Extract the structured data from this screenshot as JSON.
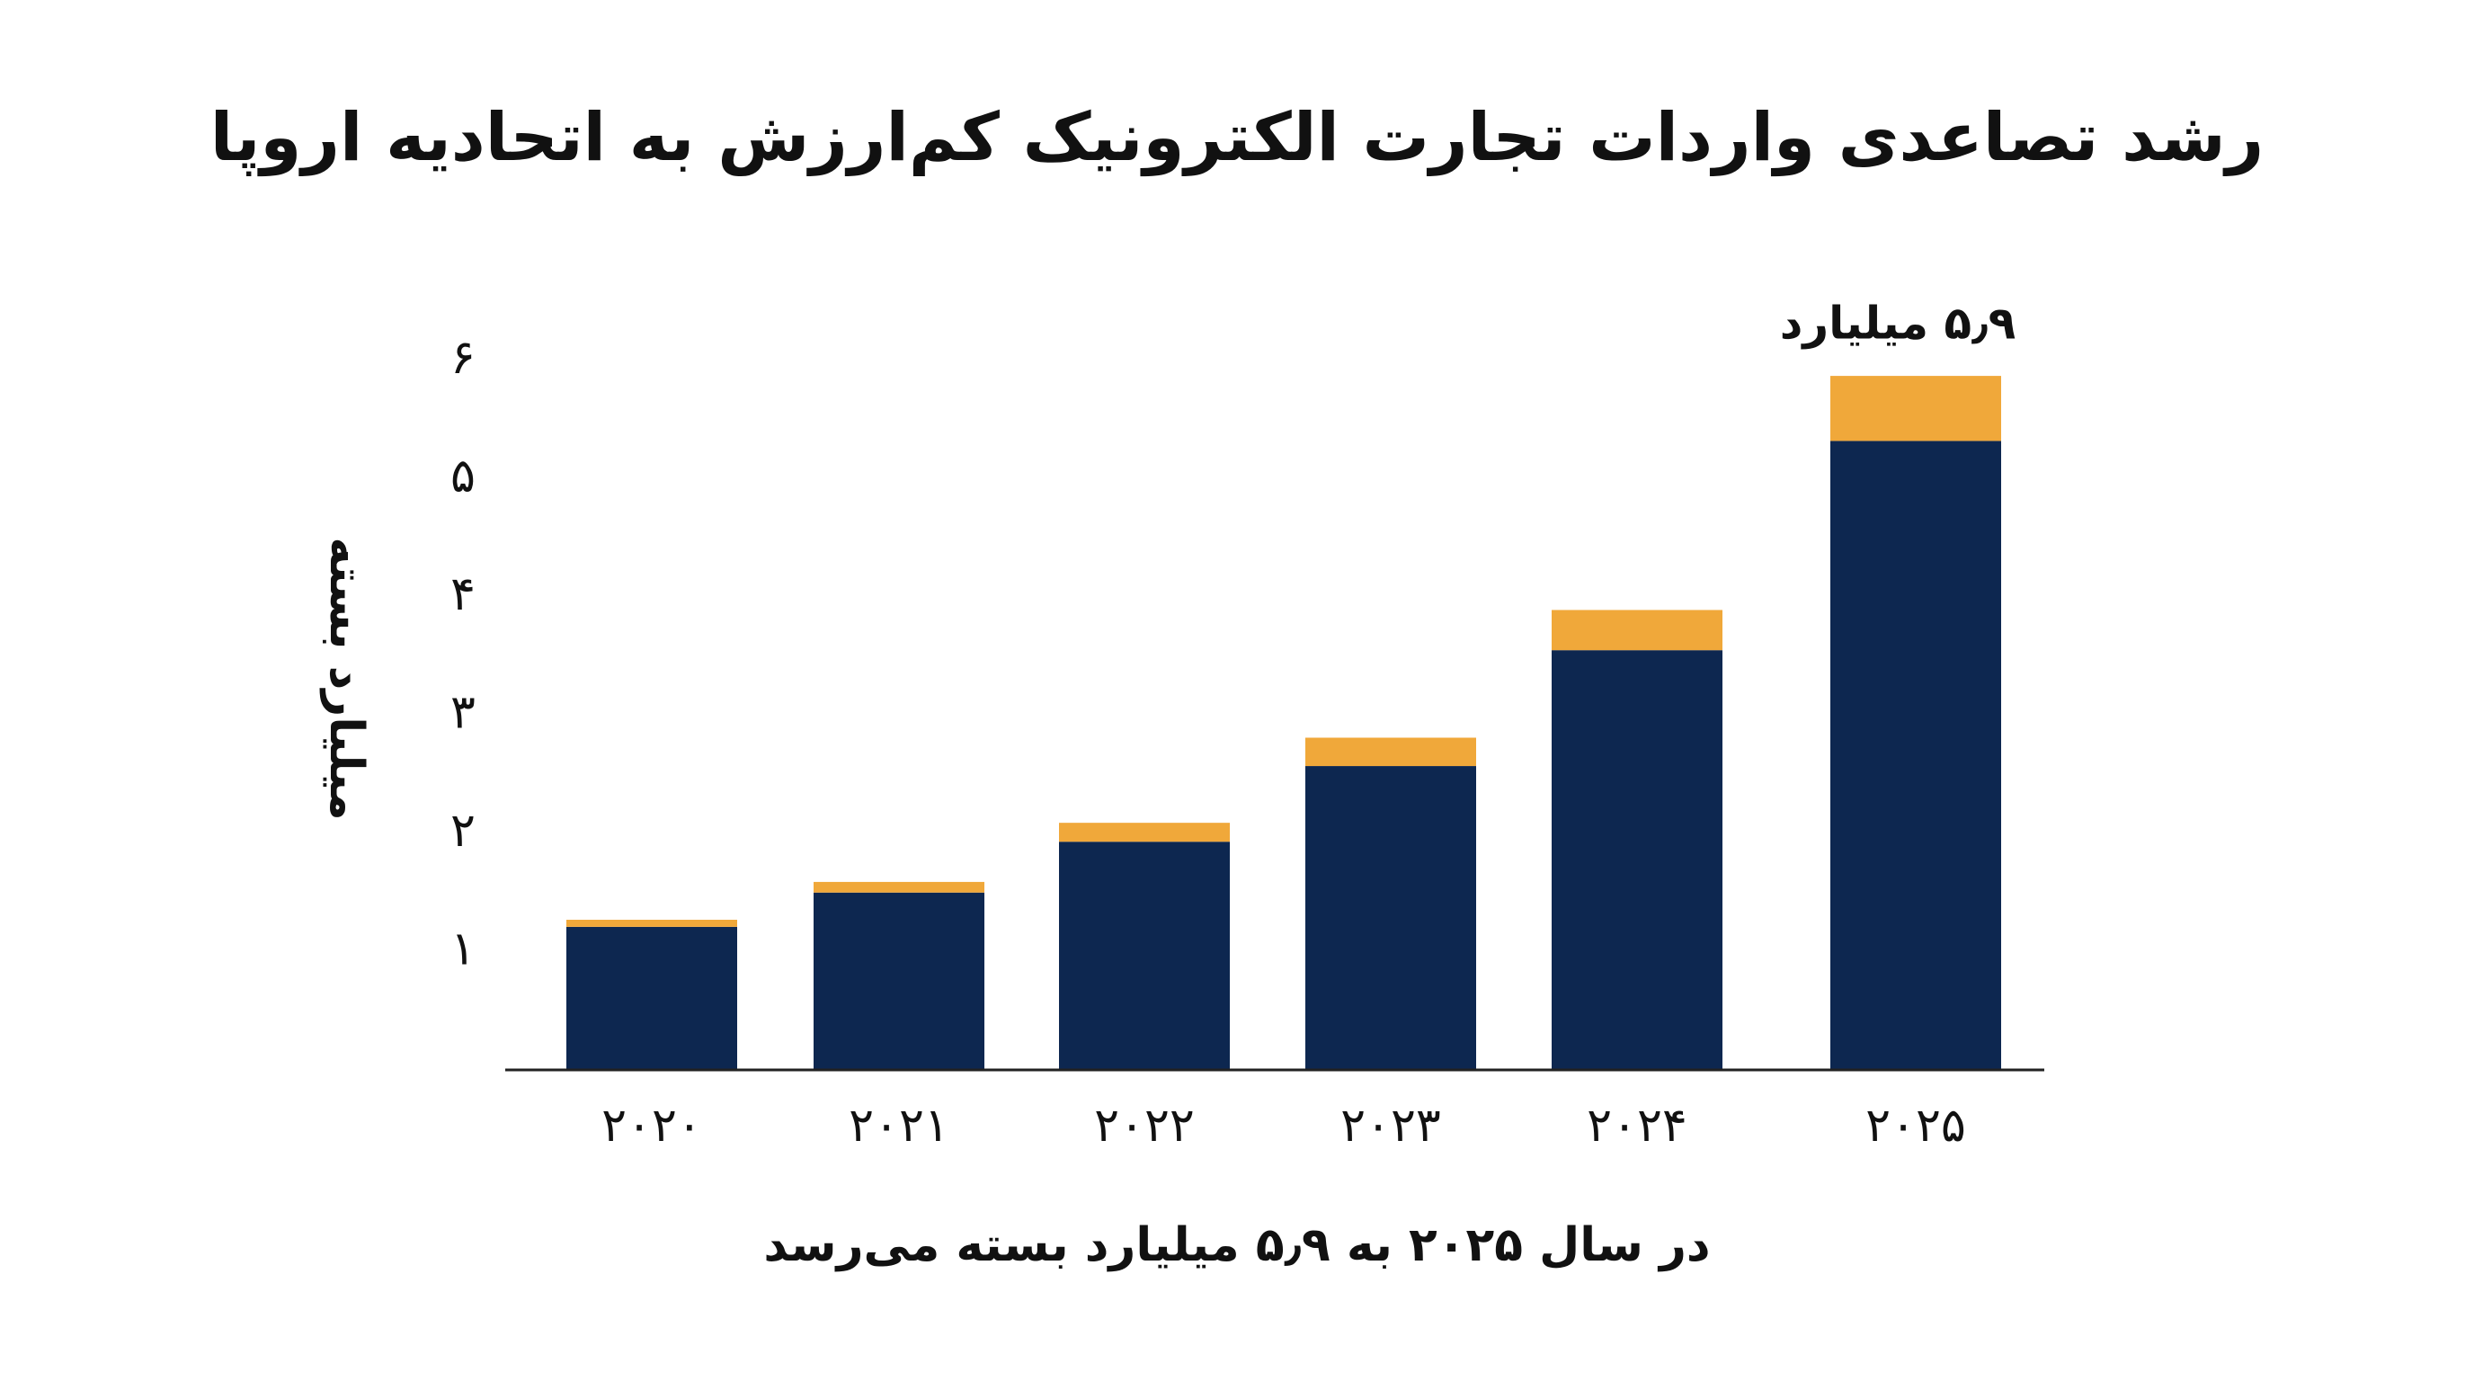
{
  "chart_data": {
    "type": "bar",
    "stacked": true,
    "title": "رشد تصاعدی واردات تجارت الکترونیک کم‌ارزش به اتحادیه اروپا",
    "ylabel": "میلیارد بسته",
    "xlabel": "",
    "categories": [
      "۲۰۲۰",
      "۲۰۲۱",
      "۲۰۲۲",
      "۲۰۲۳",
      "۲۰۲۴",
      "۲۰۲۵"
    ],
    "y_ticks": [
      {
        "value": 1,
        "label": "۱"
      },
      {
        "value": 2,
        "label": "۲"
      },
      {
        "value": 3,
        "label": "۳"
      },
      {
        "value": 4,
        "label": "۴"
      },
      {
        "value": 5,
        "label": "۵"
      },
      {
        "value": 6,
        "label": "۶"
      }
    ],
    "ylim": [
      0,
      6.2
    ],
    "series": [
      {
        "color": "#0d2750",
        "values": [
          1.21,
          1.5,
          1.93,
          2.57,
          3.55,
          5.32
        ]
      },
      {
        "color": "#f0a83a",
        "values": [
          0.06,
          0.09,
          0.16,
          0.24,
          0.34,
          0.55
        ]
      }
    ],
    "annotations": [
      {
        "category": "۲۰۲۵",
        "text": "۵٫۹ میلیارد"
      }
    ],
    "caption": "در سال ۲۰۲۵ به ۵٫۹ میلیارد بسته می‌رسد",
    "grid": false,
    "legend": "none"
  }
}
